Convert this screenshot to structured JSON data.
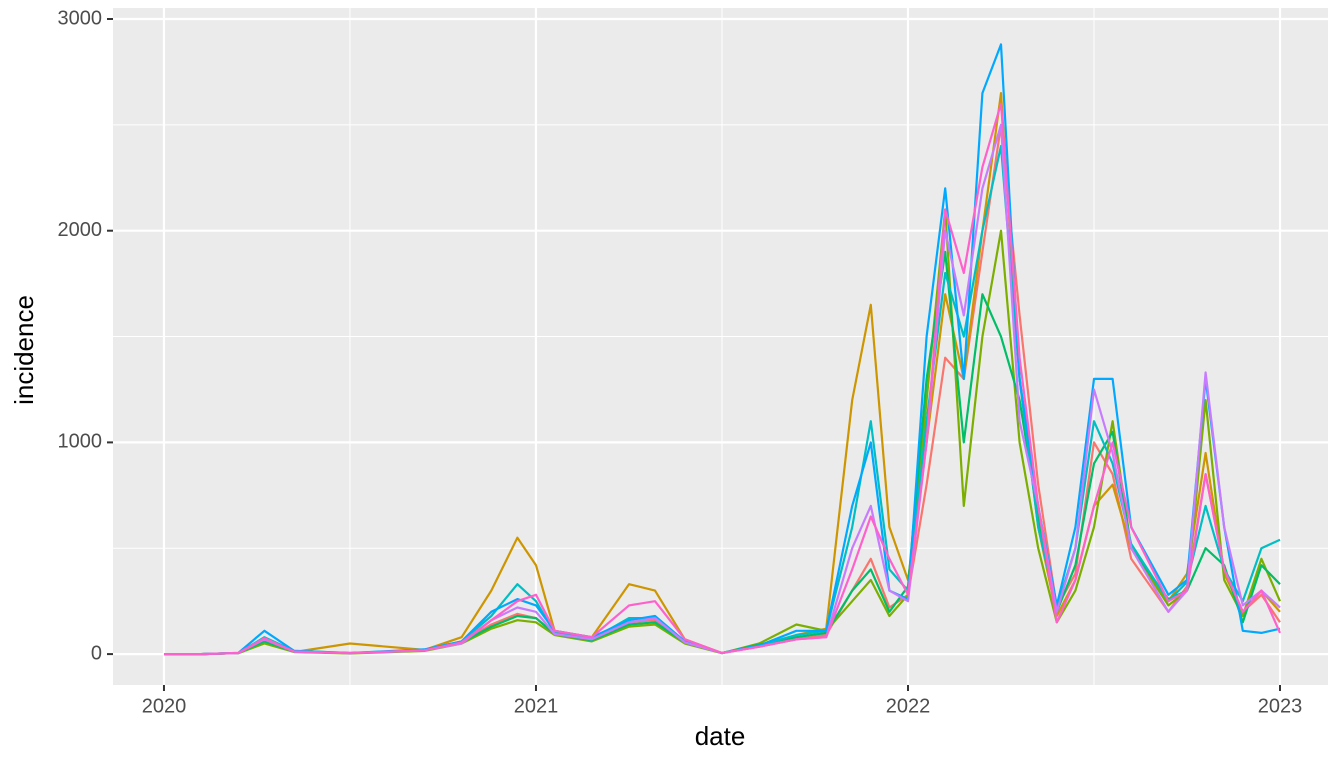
{
  "chart_data": {
    "type": "line",
    "xlabel": "date",
    "ylabel": "incidence",
    "x": [
      2020.0,
      2020.1,
      2020.2,
      2020.27,
      2020.35,
      2020.5,
      2020.7,
      2020.8,
      2020.88,
      2020.95,
      2021.0,
      2021.05,
      2021.15,
      2021.25,
      2021.32,
      2021.4,
      2021.5,
      2021.6,
      2021.7,
      2021.78,
      2021.85,
      2021.9,
      2021.95,
      2022.0,
      2022.05,
      2022.1,
      2022.15,
      2022.2,
      2022.25,
      2022.3,
      2022.35,
      2022.4,
      2022.45,
      2022.5,
      2022.55,
      2022.6,
      2022.7,
      2022.75,
      2022.8,
      2022.85,
      2022.9,
      2022.95,
      2023.0
    ],
    "series": [
      {
        "color": "#F8766D",
        "values": [
          0,
          0,
          5,
          70,
          12,
          4,
          18,
          55,
          140,
          190,
          170,
          95,
          65,
          150,
          160,
          55,
          5,
          35,
          70,
          90,
          300,
          450,
          220,
          280,
          800,
          1400,
          1300,
          1900,
          2500,
          1600,
          800,
          220,
          380,
          1000,
          850,
          450,
          200,
          320,
          850,
          400,
          200,
          280,
          150
        ]
      },
      {
        "color": "#CD9600",
        "values": [
          0,
          0,
          5,
          60,
          10,
          50,
          20,
          80,
          300,
          550,
          420,
          110,
          80,
          330,
          300,
          70,
          5,
          40,
          90,
          120,
          1200,
          1650,
          600,
          350,
          1000,
          1700,
          1300,
          2000,
          2650,
          1300,
          600,
          180,
          350,
          700,
          800,
          500,
          250,
          380,
          950,
          380,
          200,
          300,
          200
        ]
      },
      {
        "color": "#7CAE00",
        "values": [
          0,
          0,
          4,
          50,
          10,
          3,
          15,
          50,
          120,
          160,
          150,
          90,
          60,
          130,
          140,
          50,
          4,
          50,
          140,
          110,
          250,
          350,
          180,
          280,
          1200,
          2100,
          700,
          1500,
          2000,
          1000,
          500,
          150,
          300,
          600,
          1100,
          500,
          230,
          300,
          1200,
          350,
          180,
          450,
          250
        ]
      },
      {
        "color": "#00BE67",
        "values": [
          0,
          0,
          5,
          60,
          12,
          4,
          18,
          55,
          130,
          180,
          170,
          95,
          65,
          140,
          150,
          55,
          5,
          45,
          80,
          100,
          300,
          400,
          200,
          320,
          1300,
          1900,
          1000,
          1700,
          1500,
          1200,
          650,
          200,
          420,
          900,
          1050,
          500,
          260,
          300,
          500,
          420,
          150,
          420,
          330
        ]
      },
      {
        "color": "#00BFC4",
        "values": [
          0,
          0,
          5,
          80,
          15,
          5,
          20,
          60,
          180,
          330,
          250,
          100,
          70,
          170,
          170,
          60,
          5,
          40,
          90,
          110,
          600,
          1100,
          400,
          300,
          1100,
          1800,
          1500,
          2000,
          2400,
          1300,
          600,
          220,
          500,
          1100,
          900,
          520,
          250,
          340,
          700,
          400,
          250,
          500,
          540
        ]
      },
      {
        "color": "#00A9FF",
        "values": [
          0,
          0,
          6,
          110,
          15,
          5,
          22,
          60,
          200,
          260,
          230,
          110,
          80,
          160,
          180,
          60,
          5,
          40,
          110,
          110,
          700,
          1000,
          300,
          260,
          1500,
          2200,
          1300,
          2650,
          2880,
          1300,
          700,
          230,
          600,
          1300,
          1300,
          600,
          280,
          350,
          1300,
          600,
          110,
          100,
          120
        ]
      },
      {
        "color": "#C77CFF",
        "values": [
          0,
          0,
          5,
          70,
          12,
          4,
          18,
          50,
          160,
          220,
          200,
          95,
          70,
          150,
          170,
          55,
          5,
          35,
          70,
          80,
          500,
          700,
          300,
          250,
          1000,
          2000,
          1600,
          2200,
          2500,
          1100,
          700,
          200,
          500,
          1250,
          950,
          500,
          200,
          300,
          1330,
          600,
          230,
          300,
          220
        ]
      },
      {
        "color": "#FF61CC",
        "values": [
          0,
          0,
          5,
          75,
          12,
          4,
          18,
          55,
          160,
          250,
          280,
          110,
          80,
          230,
          250,
          70,
          5,
          35,
          70,
          80,
          400,
          650,
          450,
          280,
          1000,
          2100,
          1800,
          2300,
          2600,
          1400,
          700,
          150,
          350,
          700,
          1000,
          600,
          250,
          300,
          850,
          400,
          200,
          300,
          100
        ]
      }
    ],
    "xlim": [
      2019.863,
      2023.129
    ],
    "xticks": [
      2020,
      2021,
      2022,
      2023
    ],
    "ylim": [
      -146,
      3052
    ],
    "yticks": [
      0,
      1000,
      2000,
      3000
    ],
    "grid": true
  }
}
